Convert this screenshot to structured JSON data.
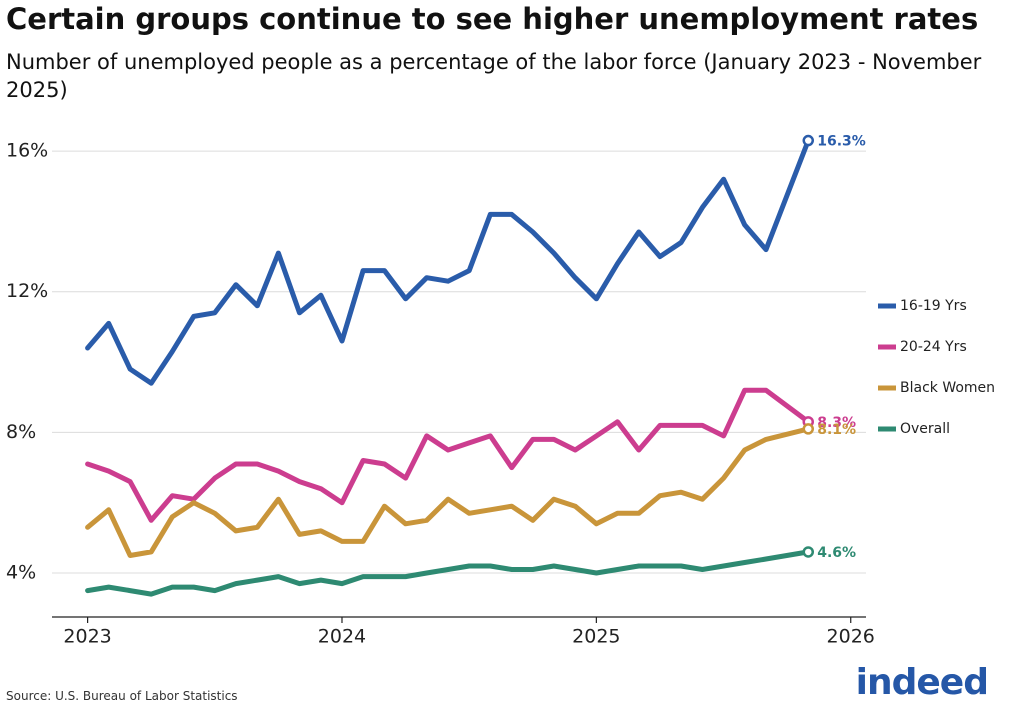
{
  "chart_data": {
    "type": "line",
    "title": "Certain groups continue to see higher unemployment rates",
    "subtitle": "Number of unemployed people as a percentage of the labor force (January 2023 - November 2025)",
    "source": "Source: U.S. Bureau of Labor Statistics",
    "logo": "indeed",
    "x": [
      2023,
      2023.083,
      2023.167,
      2023.25,
      2023.333,
      2023.417,
      2023.5,
      2023.583,
      2023.667,
      2023.75,
      2023.833,
      2023.917,
      2024,
      2024.083,
      2024.167,
      2024.25,
      2024.333,
      2024.417,
      2024.5,
      2024.583,
      2024.667,
      2024.75,
      2024.833,
      2024.917,
      2025,
      2025.083,
      2025.167,
      2025.25,
      2025.333,
      2025.417,
      2025.5,
      2025.583,
      2025.667,
      2025.833
    ],
    "xlim": [
      2022.86,
      2026.06
    ],
    "xticks": [
      2023,
      2024,
      2025,
      2026
    ],
    "ylim": [
      2.75,
      16.6
    ],
    "yticks": [
      {
        "value": 4,
        "label": "4%"
      },
      {
        "value": 8,
        "label": "8%"
      },
      {
        "value": 12,
        "label": "12%"
      },
      {
        "value": 16,
        "label": "16%"
      }
    ],
    "grid": true,
    "legend": "right",
    "series": [
      {
        "name": "16-19 Yrs",
        "color": "#2a5caa",
        "values": [
          10.4,
          11.1,
          9.8,
          9.4,
          10.3,
          11.3,
          11.4,
          12.2,
          11.6,
          13.1,
          11.4,
          11.9,
          10.6,
          12.6,
          12.6,
          11.8,
          12.4,
          12.3,
          12.6,
          14.2,
          14.2,
          13.7,
          13.1,
          12.4,
          11.8,
          12.8,
          13.7,
          13.0,
          13.4,
          14.4,
          15.2,
          13.9,
          13.2,
          16.3
        ],
        "value_labels": [
          null,
          null,
          null,
          null,
          null,
          null,
          null,
          null,
          null,
          null,
          null,
          null,
          null,
          null,
          null,
          null,
          null,
          null,
          null,
          null,
          null,
          null,
          null,
          null,
          null,
          null,
          null,
          null,
          null,
          null,
          null,
          null,
          null,
          "16.3%"
        ]
      },
      {
        "name": "20-24 Yrs",
        "color": "#cc3d8f",
        "values": [
          7.1,
          6.9,
          6.6,
          5.5,
          6.2,
          6.1,
          6.7,
          7.1,
          7.1,
          6.9,
          6.6,
          6.4,
          6.0,
          7.2,
          7.1,
          6.7,
          7.9,
          7.5,
          7.7,
          7.9,
          7.0,
          7.8,
          7.8,
          7.5,
          7.9,
          8.3,
          7.5,
          8.2,
          8.2,
          8.2,
          7.9,
          9.2,
          9.2,
          8.3
        ],
        "value_labels": [
          null,
          null,
          null,
          null,
          null,
          null,
          null,
          null,
          null,
          null,
          null,
          null,
          null,
          null,
          null,
          null,
          null,
          null,
          null,
          null,
          null,
          null,
          null,
          null,
          null,
          null,
          null,
          null,
          null,
          null,
          null,
          null,
          null,
          "8.3%"
        ]
      },
      {
        "name": "Black Women",
        "color": "#c9953a",
        "values": [
          5.3,
          5.8,
          4.5,
          4.6,
          5.6,
          6.0,
          5.7,
          5.2,
          5.3,
          6.1,
          5.1,
          5.2,
          4.9,
          4.9,
          5.9,
          5.4,
          5.5,
          6.1,
          5.7,
          5.8,
          5.9,
          5.5,
          6.1,
          5.9,
          5.4,
          5.7,
          5.7,
          6.2,
          6.3,
          6.1,
          6.7,
          7.5,
          7.8,
          8.1
        ],
        "value_labels": [
          null,
          null,
          null,
          null,
          null,
          null,
          null,
          null,
          null,
          null,
          null,
          null,
          null,
          null,
          null,
          null,
          null,
          null,
          null,
          null,
          null,
          null,
          null,
          null,
          null,
          null,
          null,
          null,
          null,
          null,
          null,
          null,
          null,
          "8.1%"
        ]
      },
      {
        "name": "Overall",
        "color": "#2e8a72",
        "values": [
          3.5,
          3.6,
          3.5,
          3.4,
          3.6,
          3.6,
          3.5,
          3.7,
          3.8,
          3.9,
          3.7,
          3.8,
          3.7,
          3.9,
          3.9,
          3.9,
          4.0,
          4.1,
          4.2,
          4.2,
          4.1,
          4.1,
          4.2,
          4.1,
          4.0,
          4.1,
          4.2,
          4.2,
          4.2,
          4.1,
          4.2,
          4.3,
          4.4,
          4.6
        ],
        "value_labels": [
          null,
          null,
          null,
          null,
          null,
          null,
          null,
          null,
          null,
          null,
          null,
          null,
          null,
          null,
          null,
          null,
          null,
          null,
          null,
          null,
          null,
          null,
          null,
          null,
          null,
          null,
          null,
          null,
          null,
          null,
          null,
          null,
          null,
          "4.6%"
        ]
      }
    ]
  }
}
